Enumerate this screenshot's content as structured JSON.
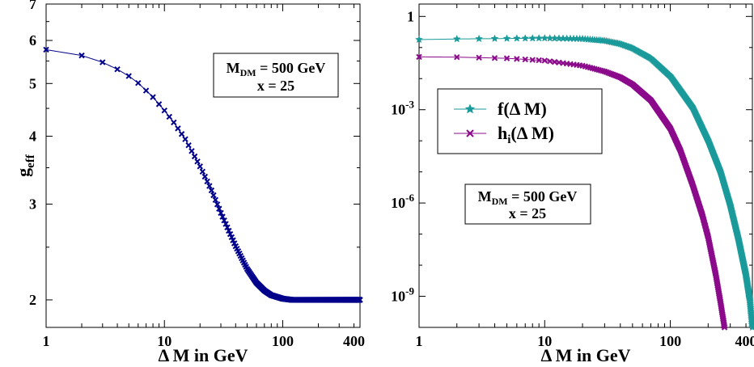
{
  "chart_data": [
    {
      "type": "line",
      "title": "",
      "xlabel": "Δ M in GeV",
      "ylabel": "g",
      "ylabel_sub": "eff",
      "x_scale": "log",
      "y_scale": "log",
      "xlim": [
        1,
        450
      ],
      "ylim": [
        1.78,
        7
      ],
      "x_ticks": [
        {
          "v": 1,
          "label": "1"
        },
        {
          "v": 10,
          "label": "10"
        },
        {
          "v": 100,
          "label": "100"
        },
        {
          "v": 400,
          "label": "400"
        }
      ],
      "y_ticks": [
        {
          "v": 2,
          "label": "2"
        },
        {
          "v": 3,
          "label": "3"
        },
        {
          "v": 4,
          "label": "4"
        },
        {
          "v": 5,
          "label": "5"
        },
        {
          "v": 6,
          "label": "6"
        },
        {
          "v": 7,
          "label": "7"
        }
      ],
      "grid": false,
      "annotation": {
        "main": "M",
        "sub": "DM",
        "rest": " = 500 GeV",
        "line2": "x = 25"
      },
      "series": [
        {
          "color": "#00008b",
          "marker": "x",
          "x": [
            1,
            2,
            3,
            4,
            5,
            6,
            8,
            10,
            12,
            15,
            20,
            25,
            30,
            40,
            50,
            60,
            70,
            80,
            100,
            120,
            150,
            200,
            300,
            450
          ],
          "y": [
            5.77,
            5.63,
            5.47,
            5.31,
            5.16,
            5.01,
            4.72,
            4.46,
            4.24,
            3.95,
            3.52,
            3.18,
            2.89,
            2.51,
            2.28,
            2.15,
            2.08,
            2.04,
            2.01,
            2.0,
            2.0,
            2.0,
            2.0,
            2.0
          ]
        }
      ]
    },
    {
      "type": "line",
      "title": "",
      "xlabel": "Δ M in GeV",
      "ylabel": "",
      "x_scale": "log",
      "y_scale": "log",
      "xlim": [
        1,
        450
      ],
      "ylim": [
        1e-10,
        2.5
      ],
      "x_ticks": [
        {
          "v": 1,
          "label": "1"
        },
        {
          "v": 10,
          "label": "10"
        },
        {
          "v": 100,
          "label": "100"
        },
        {
          "v": 400,
          "label": "400"
        }
      ],
      "y_ticks": [
        {
          "v": 1,
          "base": "1",
          "exp": ""
        },
        {
          "v": 0.001,
          "base": "10",
          "exp": "-3"
        },
        {
          "v": 1e-06,
          "base": "10",
          "exp": "-6"
        },
        {
          "v": 1e-09,
          "base": "10",
          "exp": "-9"
        }
      ],
      "grid": false,
      "legend_position": "upper-left",
      "annotation": {
        "main": "M",
        "sub": "DM",
        "rest": " = 500 GeV",
        "line2": "x = 25"
      },
      "series": [
        {
          "name": "f(Δ M)",
          "name_main": "f(Δ M)",
          "name_sub": "",
          "name_rest": "",
          "color": "#1a9a9a",
          "marker": "star",
          "x": [
            1,
            2,
            5,
            10,
            20,
            30,
            40,
            50,
            70,
            100,
            150,
            200,
            250,
            300,
            350,
            400,
            430,
            450
          ],
          "y": [
            0.18,
            0.188,
            0.195,
            0.2,
            0.19,
            0.165,
            0.13,
            0.095,
            0.045,
            0.012,
            0.0012,
            0.0001,
            1e-05,
            8e-07,
            6e-08,
            4.5e-09,
            7e-10,
            1e-10
          ]
        },
        {
          "name": "hi(Δ M)",
          "name_main": "h",
          "name_sub": "i",
          "name_rest": "(Δ M)",
          "color": "#8b0a8b",
          "marker": "x",
          "x": [
            1,
            2,
            5,
            10,
            20,
            30,
            40,
            50,
            70,
            100,
            120,
            150,
            180,
            200,
            230,
            250,
            270
          ],
          "y": [
            0.05,
            0.049,
            0.045,
            0.038,
            0.026,
            0.017,
            0.011,
            0.0065,
            0.002,
            0.00025,
            5e-05,
            4e-06,
            4e-07,
            8e-08,
            5e-09,
            7e-10,
            1e-10
          ]
        }
      ]
    }
  ]
}
